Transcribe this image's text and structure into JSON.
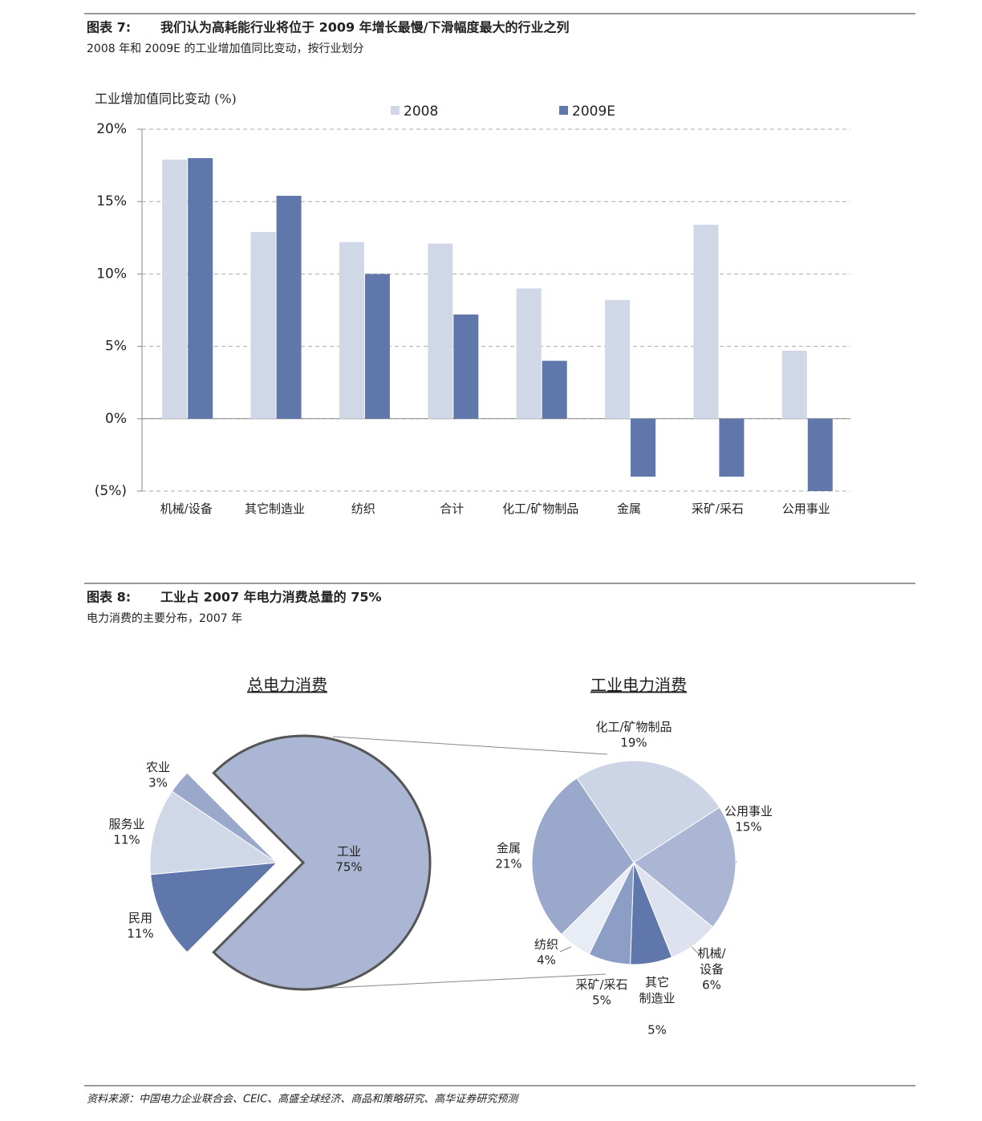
{
  "figure7": {
    "label": "图表 7:",
    "title": "我们认为高耗能行业将位于 2009 年增长最慢/下滑幅度最大的行业之列",
    "subtitle": "2008 年和 2009E 的工业增加值同比变动，按行业划分"
  },
  "figure8": {
    "label": "图表 8:",
    "title": "工业占 2007 年电力消费总量的 75%",
    "subtitle": "电力消费的主要分布，2007 年"
  },
  "chart_data": [
    {
      "type": "bar",
      "y_label": "工业增加值同比变动 (%)",
      "categories": [
        "机械/设备",
        "其它制造业",
        "纺织",
        "合计",
        "化工/矿物制品",
        "金属",
        "采矿/采石",
        "公用事业"
      ],
      "series": [
        {
          "name": "2008",
          "color": "#d0d7e6",
          "values": [
            17.9,
            12.9,
            12.2,
            12.1,
            9.0,
            8.2,
            13.4,
            4.7
          ]
        },
        {
          "name": "2009E",
          "color": "#5f77aa",
          "values": [
            18.0,
            15.4,
            10.0,
            7.2,
            4.0,
            -4.0,
            -4.0,
            -5.0
          ]
        }
      ],
      "ylim": [
        -5,
        20
      ],
      "yticks": [
        {
          "value": -5,
          "label": "(5%)"
        },
        {
          "value": 0,
          "label": "0%"
        },
        {
          "value": 5,
          "label": "5%"
        },
        {
          "value": 10,
          "label": "10%"
        },
        {
          "value": 15,
          "label": "15%"
        },
        {
          "value": 20,
          "label": "20%"
        }
      ],
      "grid": true,
      "legend": "top"
    },
    {
      "type": "pie",
      "title": "总电力消费",
      "labels": [
        "工业",
        "民用",
        "服务业",
        "农业"
      ],
      "values": [
        75,
        11,
        11,
        3
      ],
      "value_labels": [
        "75%",
        "11%",
        "11%",
        "3%"
      ],
      "colors": [
        "#aab6d4",
        "#5f77aa",
        "#d0d7e6",
        "#9aa9cb"
      ]
    },
    {
      "type": "pie",
      "title": "工业电力消费",
      "labels": [
        "化工/矿物制品",
        "公用事业",
        "机械/\n设备",
        "其它\n制造业",
        "采矿/采石",
        "纺织",
        "金属"
      ],
      "values": [
        19,
        15,
        6,
        5,
        5,
        4,
        21
      ],
      "value_labels": [
        "19%",
        "15%",
        "6%",
        "5%",
        "5%",
        "4%",
        "21%"
      ],
      "colors": [
        "#cdd4e6",
        "#aab6d4",
        "#dde2ee",
        "#5f77aa",
        "#8c9ec6",
        "#e8ecf4",
        "#9aa9cb"
      ]
    }
  ],
  "source": "资料来源：中国电力企业联合会、CEIC、高盛全球经济、商品和策略研究、高华证券研究预测"
}
